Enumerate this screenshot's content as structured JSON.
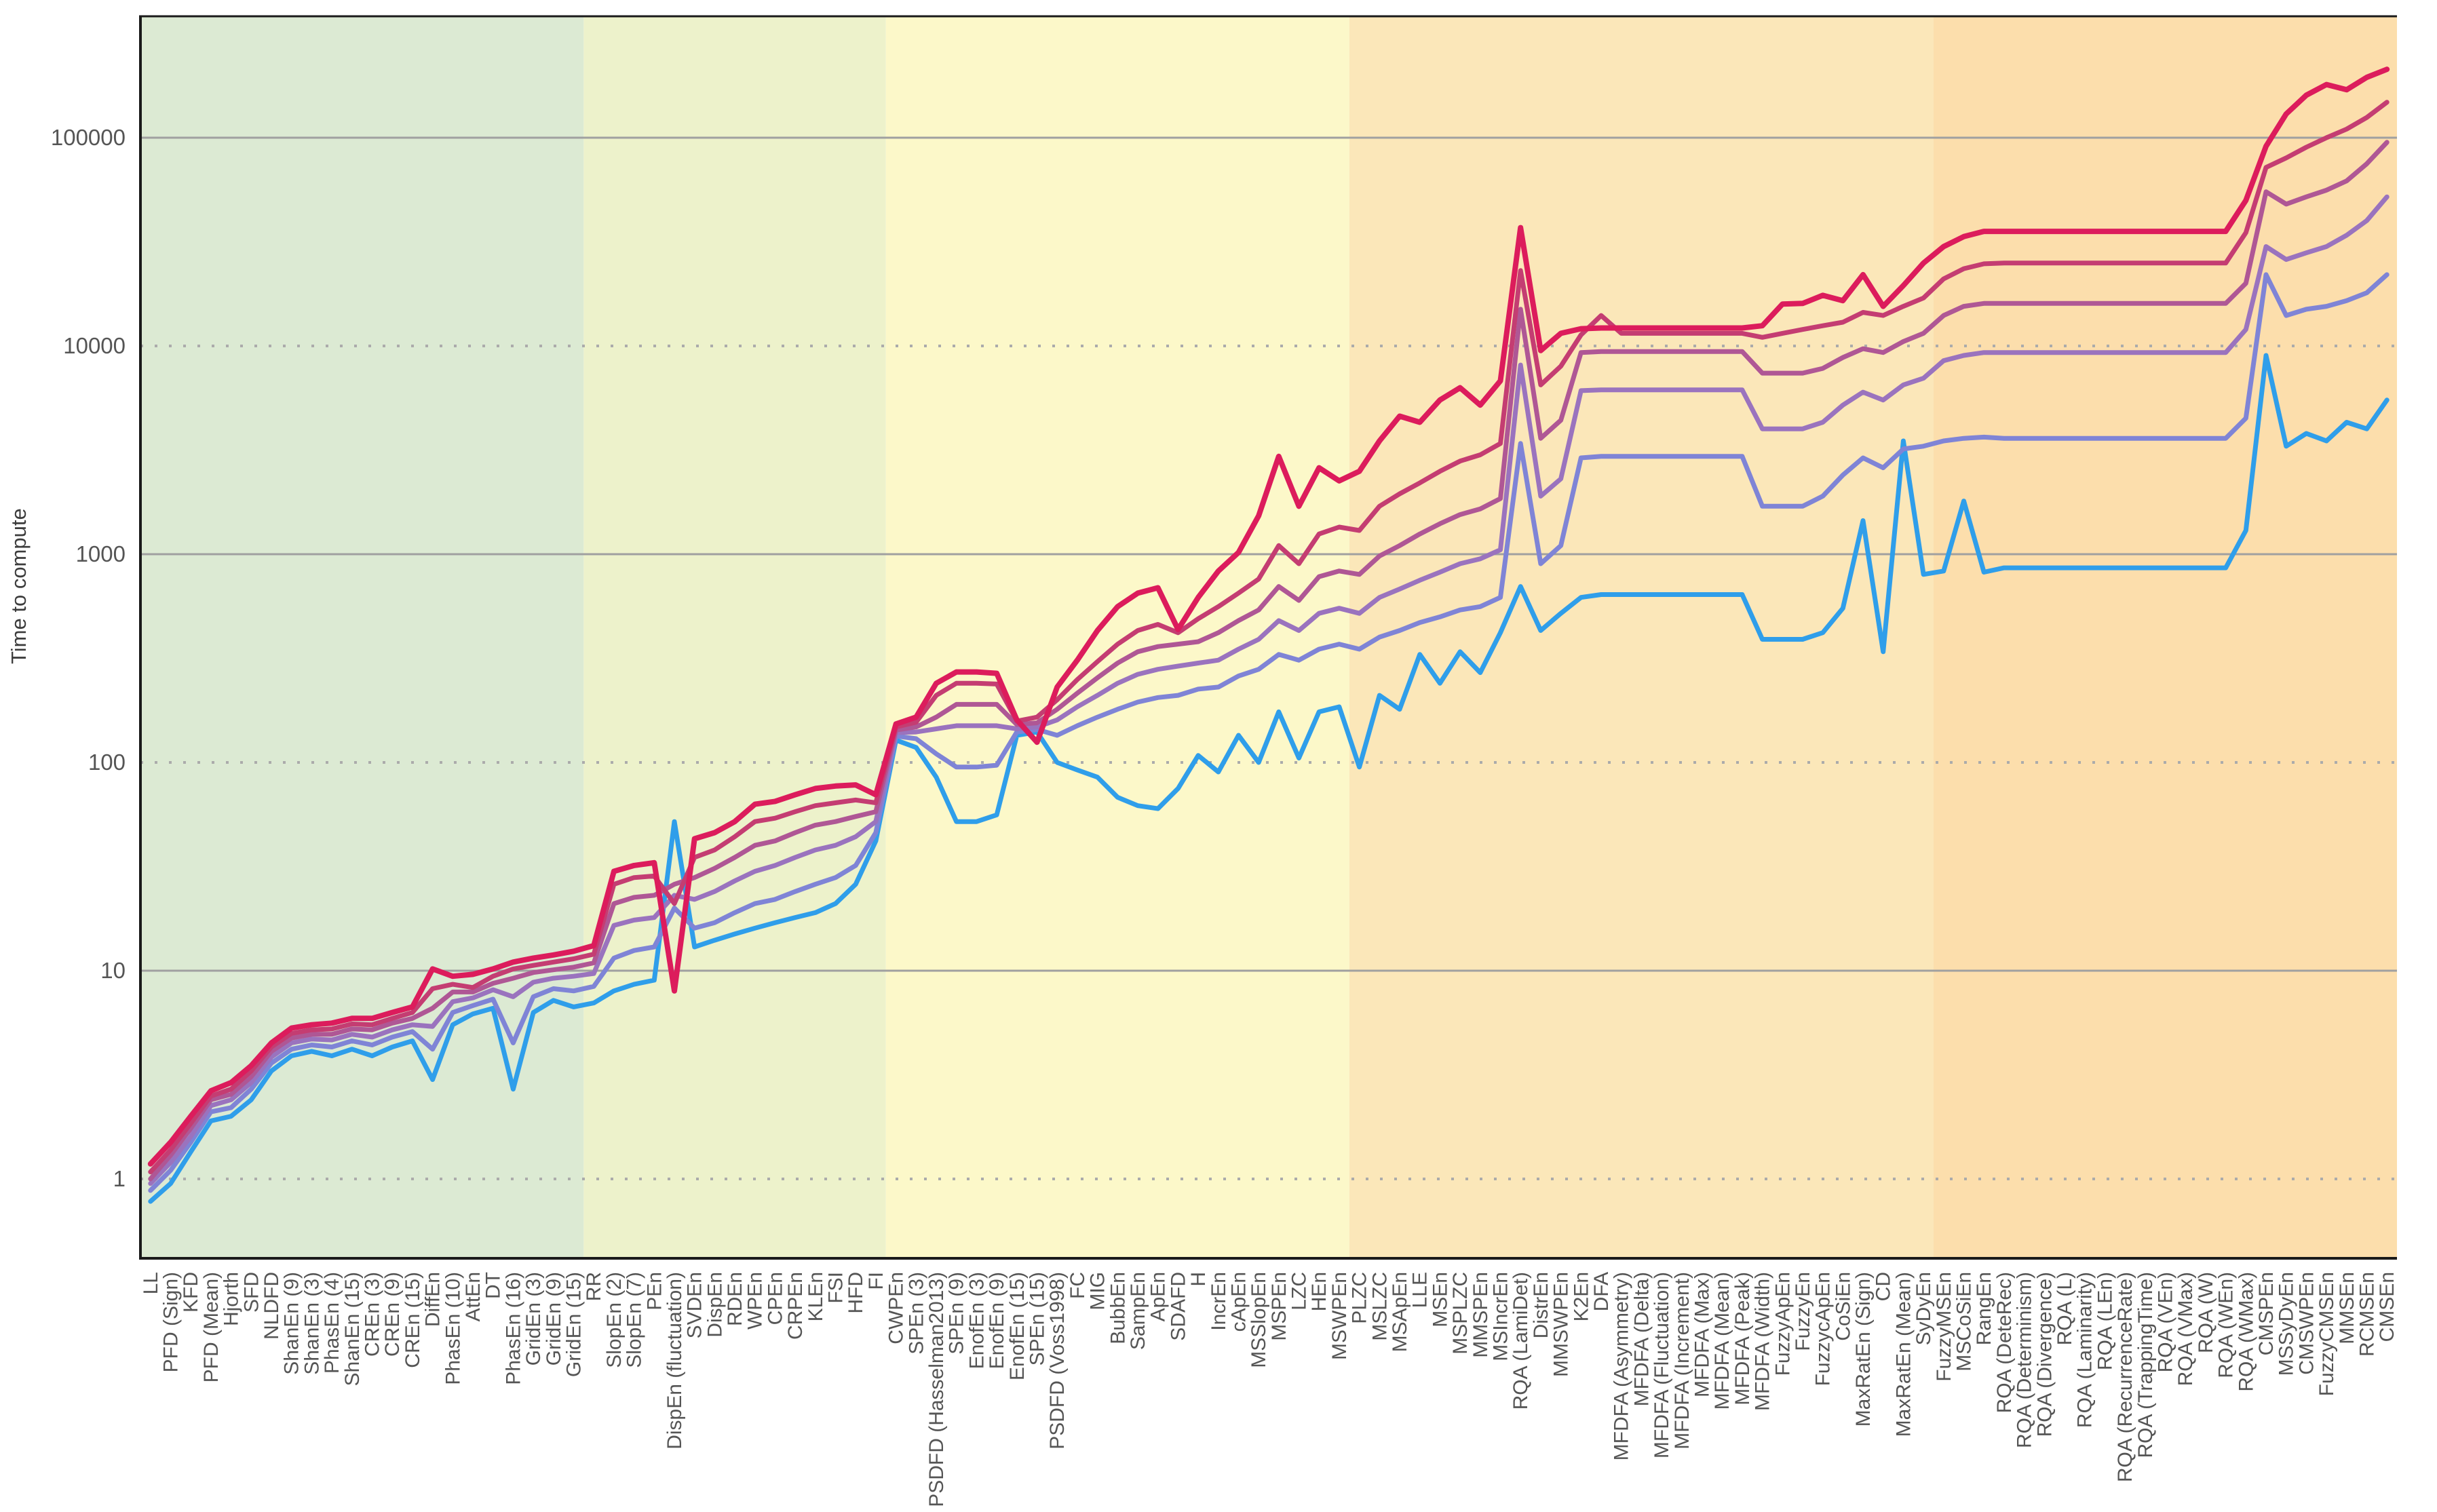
{
  "chart_data": {
    "type": "line",
    "title": "",
    "xlabel": "",
    "ylabel": "Time to compute",
    "y_scale": "log",
    "ylim": [
      0.42,
      380000
    ],
    "grid": "horizontal",
    "legend_position": "none",
    "colors": {
      "axis": "#1a1a1a",
      "tick_text": "#555555",
      "grid_solid": "#a0a0a0",
      "grid_dotted": "#ababab",
      "page_background": "#ffffff"
    },
    "y_ticks": [
      {
        "label": "1",
        "value": 1,
        "line": "dotted"
      },
      {
        "label": "10",
        "value": 10,
        "line": "solid"
      },
      {
        "label": "100",
        "value": 100,
        "line": "dotted"
      },
      {
        "label": "1000",
        "value": 1000,
        "line": "solid"
      },
      {
        "label": "10000",
        "value": 10000,
        "line": "dotted"
      },
      {
        "label": "100000",
        "value": 100000,
        "line": "solid"
      }
    ],
    "zones": [
      {
        "name": "zone-1",
        "color": "#dcead3",
        "from_index": 0,
        "to_index": 21
      },
      {
        "name": "zone-2",
        "color": "#edf2cb",
        "from_index": 22,
        "to_index": 36
      },
      {
        "name": "zone-3",
        "color": "#fcf8c9",
        "from_index": 37,
        "to_index": 59
      },
      {
        "name": "zone-4",
        "color": "#fbe7b9",
        "from_index": 60,
        "to_index": 88
      },
      {
        "name": "zone-5",
        "color": "#fcdeac",
        "from_index": 89,
        "to_index": 111
      }
    ],
    "categories": [
      "LL",
      "PFD (Sign)",
      "KFD",
      "PFD (Mean)",
      "Hjorth",
      "SFD",
      "NLDFD",
      "ShanEn (9)",
      "ShanEn (3)",
      "PhasEn (4)",
      "ShanEn (15)",
      "CREn (3)",
      "CREn (9)",
      "CREn (15)",
      "DiffEn",
      "PhasEn (10)",
      "AttEn",
      "DT",
      "PhasEn (16)",
      "GridEn (3)",
      "GridEn (9)",
      "GridEn (15)",
      "RR",
      "SlopEn (2)",
      "SlopEn (7)",
      "PEn",
      "DispEn (fluctuation)",
      "SVDEn",
      "DispEn",
      "RDEn",
      "WPEn",
      "CPEn",
      "CRPEn",
      "KLEn",
      "FSI",
      "HFD",
      "FI",
      "CWPEn",
      "SPEn (3)",
      "PSDFD (Hasselman2013)",
      "SPEn (9)",
      "EnofEn (3)",
      "EnofEn (9)",
      "EnofEn (15)",
      "SPEn (15)",
      "PSDFD (Voss1998)",
      "FC",
      "MIG",
      "BubbEn",
      "SampEn",
      "ApEn",
      "SDAFD",
      "H",
      "IncrEn",
      "cApEn",
      "MSSlopEn",
      "MSPEn",
      "LZC",
      "HEn",
      "MSWPEn",
      "PLZC",
      "MSLZC",
      "MSApEn",
      "LLE",
      "MSEn",
      "MSPLZC",
      "MMSPEn",
      "MSIncrEn",
      "RQA (LamiDet)",
      "DistrEn",
      "MMSWPEn",
      "K2En",
      "DFA",
      "MFDFA (Asymmetry)",
      "MFDFA (Delta)",
      "MFDFA (Fluctuation)",
      "MFDFA (Increment)",
      "MFDFA (Max)",
      "MFDFA (Mean)",
      "MFDFA (Peak)",
      "MFDFA (Width)",
      "FuzzyApEn",
      "FuzzyEn",
      "FuzzycApEn",
      "CoSiEn",
      "MaxRatEn (Sign)",
      "CD",
      "MaxRatEn (Mean)",
      "SyDyEn",
      "FuzzyMSEn",
      "MSCoSiEn",
      "RangEn",
      "RQA (DeteRec)",
      "RQA (Determinism)",
      "RQA (Divergence)",
      "RQA (L)",
      "RQA (Laminarity)",
      "RQA (LEn)",
      "RQA (RecurrenceRate)",
      "RQA (TrappingTime)",
      "RQA (VEn)",
      "RQA (VMax)",
      "RQA (W)",
      "RQA (WEn)",
      "RQA (WMax)",
      "CMSPEn",
      "MSSyDyEn",
      "CMSWPEn",
      "FuzzyCMSEn",
      "MMSEn",
      "RCMSEn",
      "CMSEn"
    ],
    "series": [
      {
        "name": "series-blue",
        "color": "#2f9eea",
        "width": 7,
        "values": [
          0.78,
          0.95,
          1.35,
          1.9,
          2.0,
          2.4,
          3.3,
          3.9,
          4.1,
          3.9,
          4.2,
          3.9,
          4.3,
          4.6,
          3.0,
          5.5,
          6.2,
          6.6,
          2.7,
          6.3,
          7.2,
          6.7,
          7.0,
          8.0,
          8.6,
          9.0,
          52,
          13,
          14,
          15,
          16,
          17,
          18,
          19,
          21,
          26,
          42,
          128,
          118,
          85,
          52,
          52,
          56,
          135,
          140,
          100,
          92,
          85,
          68,
          62,
          60,
          75,
          108,
          90,
          135,
          100,
          175,
          105,
          175,
          185,
          95,
          210,
          180,
          330,
          240,
          340,
          270,
          420,
          700,
          430,
          520,
          620,
          640,
          640,
          640,
          640,
          640,
          640,
          640,
          640,
          390,
          390,
          390,
          420,
          550,
          1450,
          340,
          3500,
          800,
          830,
          1800,
          820,
          860,
          860,
          860,
          860,
          860,
          860,
          860,
          860,
          860,
          860,
          860,
          860,
          1300,
          9000,
          3300,
          3800,
          3500,
          4300,
          4000,
          5500
        ]
      },
      {
        "name": "series-periwinkle",
        "color": "#7f84d6",
        "width": 7,
        "values": [
          0.88,
          1.1,
          1.5,
          2.1,
          2.2,
          2.7,
          3.6,
          4.2,
          4.4,
          4.3,
          4.6,
          4.4,
          4.8,
          5.1,
          4.2,
          6.3,
          6.8,
          7.3,
          4.5,
          7.5,
          8.2,
          8.0,
          8.4,
          11.5,
          12.5,
          13,
          20,
          16,
          17,
          19,
          21,
          22,
          24,
          26,
          28,
          32,
          46,
          134,
          130,
          110,
          95,
          95,
          97,
          140,
          144,
          135,
          150,
          165,
          180,
          195,
          205,
          210,
          225,
          230,
          260,
          280,
          330,
          310,
          350,
          370,
          350,
          400,
          430,
          470,
          500,
          540,
          560,
          620,
          3400,
          900,
          1100,
          2900,
          2950,
          2950,
          2950,
          2950,
          2950,
          2950,
          2950,
          2950,
          1700,
          1700,
          1700,
          1900,
          2400,
          2900,
          2600,
          3200,
          3300,
          3500,
          3600,
          3650,
          3600,
          3600,
          3600,
          3600,
          3600,
          3600,
          3600,
          3600,
          3600,
          3600,
          3600,
          3600,
          4500,
          22000,
          14000,
          15000,
          15500,
          16500,
          18000,
          22000
        ]
      },
      {
        "name": "series-purple",
        "color": "#9a73be",
        "width": 7,
        "values": [
          0.95,
          1.2,
          1.6,
          2.25,
          2.4,
          2.9,
          3.85,
          4.5,
          4.7,
          4.65,
          4.95,
          4.8,
          5.2,
          5.5,
          5.4,
          7.1,
          7.4,
          8.1,
          7.5,
          8.8,
          9.2,
          9.4,
          9.7,
          16.5,
          17.5,
          18,
          23,
          22,
          24,
          27,
          30,
          32,
          35,
          38,
          40,
          44,
          52,
          139,
          140,
          145,
          150,
          150,
          150,
          145,
          148,
          160,
          185,
          210,
          240,
          265,
          280,
          290,
          300,
          310,
          350,
          390,
          480,
          430,
          520,
          550,
          520,
          620,
          680,
          750,
          820,
          900,
          950,
          1050,
          8100,
          1900,
          2300,
          6100,
          6150,
          6150,
          6150,
          6150,
          6150,
          6150,
          6150,
          6150,
          4000,
          4000,
          4000,
          4300,
          5200,
          6000,
          5500,
          6500,
          7000,
          8500,
          9000,
          9300,
          9300,
          9300,
          9300,
          9300,
          9300,
          9300,
          9300,
          9300,
          9300,
          9300,
          9300,
          9300,
          12000,
          30000,
          26000,
          28000,
          30000,
          34000,
          40000,
          52000
        ]
      },
      {
        "name": "series-mauve",
        "color": "#af5795",
        "width": 7,
        "values": [
          1.0,
          1.3,
          1.75,
          2.4,
          2.55,
          3.1,
          4.1,
          4.75,
          4.95,
          4.95,
          5.25,
          5.2,
          5.6,
          5.9,
          6.6,
          7.9,
          7.9,
          8.7,
          9.2,
          9.8,
          10.1,
          10.4,
          10.9,
          21,
          22.5,
          23,
          26,
          28,
          31,
          35,
          40,
          42,
          46,
          50,
          52,
          55,
          58,
          143,
          148,
          165,
          190,
          190,
          190,
          152,
          155,
          180,
          215,
          255,
          300,
          340,
          360,
          370,
          380,
          420,
          480,
          540,
          700,
          600,
          780,
          830,
          800,
          980,
          1100,
          1250,
          1400,
          1550,
          1650,
          1850,
          15000,
          3600,
          4400,
          9300,
          9400,
          9400,
          9400,
          9400,
          9400,
          9400,
          9400,
          9400,
          7400,
          7400,
          7400,
          7800,
          8800,
          9700,
          9300,
          10500,
          11500,
          14000,
          15500,
          16000,
          16000,
          16000,
          16000,
          16000,
          16000,
          16000,
          16000,
          16000,
          16000,
          16000,
          16000,
          16000,
          20000,
          55000,
          48000,
          52000,
          56000,
          62000,
          75000,
          95000
        ]
      },
      {
        "name": "series-darkpink",
        "color": "#c43d72",
        "width": 7,
        "values": [
          1.08,
          1.38,
          1.85,
          2.5,
          2.7,
          3.3,
          4.3,
          5.0,
          5.2,
          5.25,
          5.55,
          5.5,
          5.9,
          6.3,
          8.2,
          8.6,
          8.3,
          9.4,
          10.2,
          10.6,
          11.0,
          11.4,
          12.0,
          26,
          28,
          28.5,
          21,
          35,
          38,
          44,
          52,
          54,
          58,
          62,
          64,
          66,
          64,
          148,
          156,
          210,
          240,
          240,
          238,
          158,
          165,
          200,
          250,
          305,
          370,
          430,
          460,
          420,
          490,
          560,
          650,
          760,
          1100,
          900,
          1250,
          1350,
          1300,
          1700,
          1950,
          2200,
          2500,
          2800,
          3000,
          3400,
          23000,
          6500,
          8000,
          11300,
          14000,
          11500,
          11500,
          11500,
          11500,
          11500,
          11500,
          11500,
          11000,
          11500,
          12000,
          12500,
          13000,
          14500,
          14000,
          15500,
          17000,
          21000,
          23500,
          24800,
          25000,
          25000,
          25000,
          25000,
          25000,
          25000,
          25000,
          25000,
          25000,
          25000,
          25000,
          25000,
          35000,
          72000,
          80000,
          90000,
          100000,
          110000,
          125000,
          148000
        ]
      },
      {
        "name": "series-crimson",
        "color": "#dc1c5c",
        "width": 8,
        "values": [
          1.18,
          1.5,
          2.0,
          2.65,
          2.9,
          3.5,
          4.5,
          5.3,
          5.5,
          5.6,
          5.9,
          5.9,
          6.3,
          6.7,
          10.2,
          9.4,
          9.6,
          10.2,
          11.0,
          11.5,
          11.9,
          12.4,
          13.2,
          30,
          32,
          33,
          8,
          43,
          46,
          52,
          63,
          65,
          70,
          75,
          77,
          78,
          70,
          153,
          165,
          240,
          272,
          272,
          268,
          160,
          125,
          230,
          310,
          430,
          560,
          650,
          690,
          435,
          620,
          830,
          1020,
          1530,
          2950,
          1700,
          2600,
          2250,
          2500,
          3500,
          4600,
          4300,
          5500,
          6300,
          5200,
          6800,
          37000,
          9500,
          11500,
          12100,
          12200,
          12200,
          12200,
          12200,
          12200,
          12200,
          12200,
          12200,
          12500,
          15900,
          16000,
          17500,
          16500,
          22000,
          15500,
          19500,
          25000,
          30000,
          33500,
          35500,
          35500,
          35500,
          35500,
          35500,
          35500,
          35500,
          35500,
          35500,
          35500,
          35500,
          35500,
          35500,
          50000,
          91000,
          130000,
          160000,
          180000,
          170000,
          195000,
          213000
        ]
      }
    ]
  }
}
